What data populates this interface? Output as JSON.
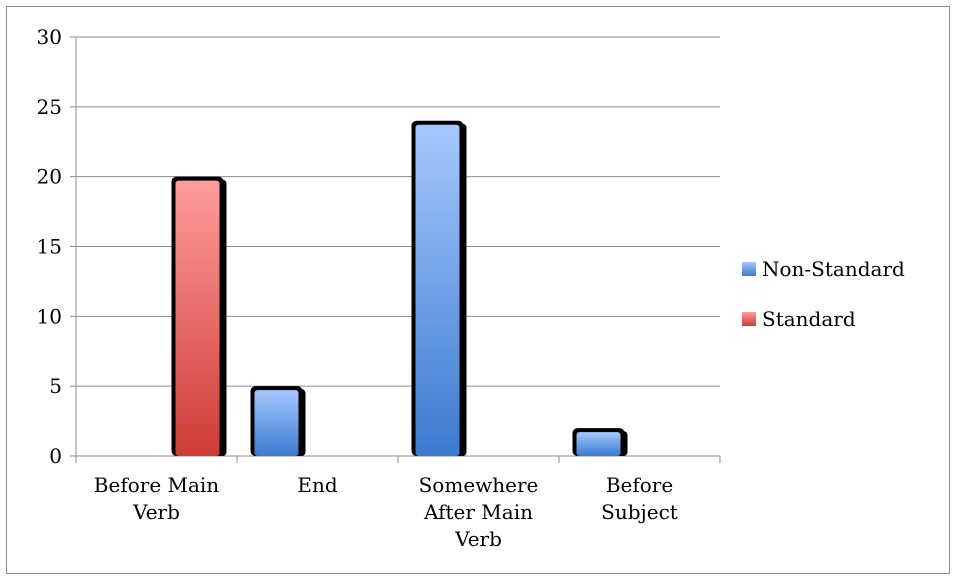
{
  "chart_data": {
    "type": "bar",
    "title": "",
    "xlabel": "",
    "ylabel": "",
    "categories": [
      [
        "Before Main",
        "Verb"
      ],
      [
        "End"
      ],
      [
        "Somewhere",
        "After Main",
        "Verb"
      ],
      [
        "Before",
        "Subject"
      ]
    ],
    "ylim": [
      0,
      30
    ],
    "yticks": [
      0,
      5,
      10,
      15,
      20,
      25,
      30
    ],
    "grid": true,
    "legend_position": "right",
    "series": [
      {
        "name": "Non-Standard",
        "color": "#4f81bd",
        "values": [
          null,
          5,
          24,
          2
        ]
      },
      {
        "name": "Standard",
        "color": "#c0504d",
        "values": [
          20,
          null,
          null,
          null
        ]
      }
    ]
  }
}
